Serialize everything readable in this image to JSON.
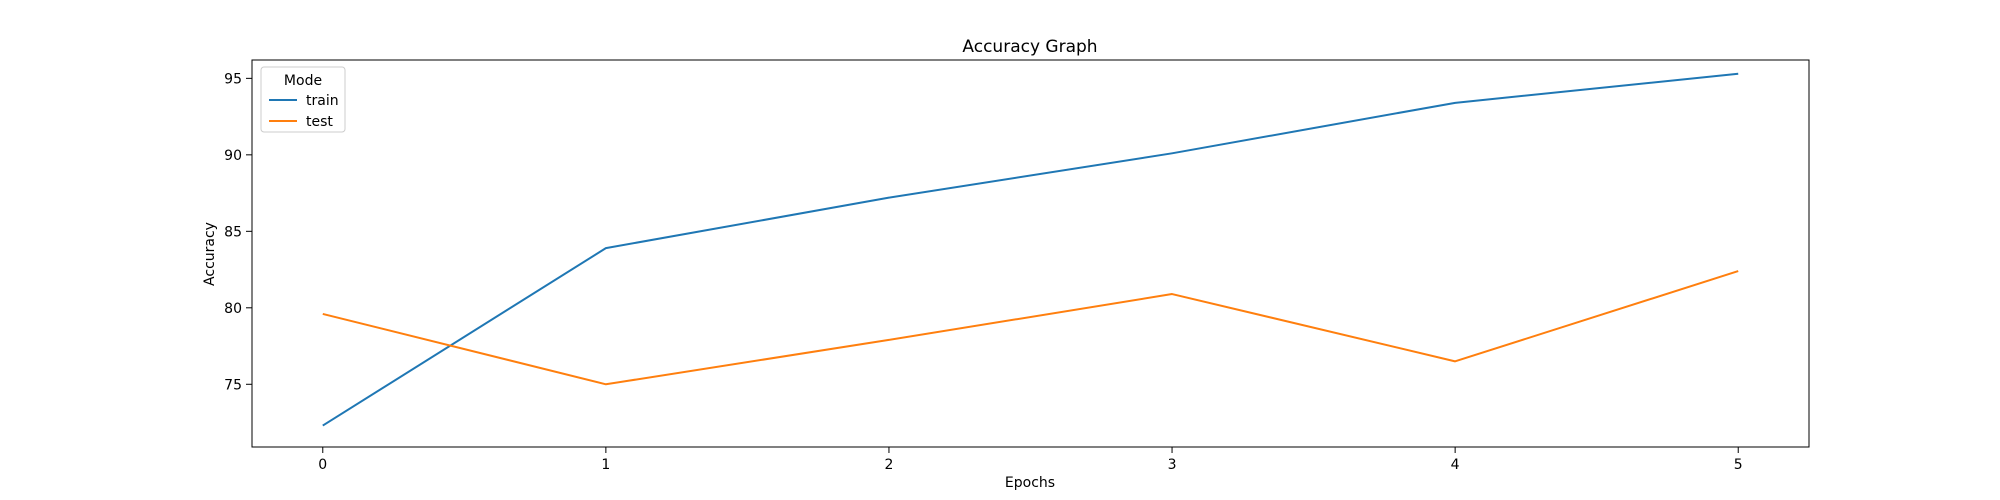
{
  "chart_data": {
    "type": "line",
    "title": "Accuracy Graph",
    "xlabel": "Epochs",
    "ylabel": "Accuracy",
    "x": [
      0,
      1,
      2,
      3,
      4,
      5
    ],
    "xticks": [
      0,
      1,
      2,
      3,
      4,
      5
    ],
    "yticks": [
      75,
      80,
      85,
      90,
      95
    ],
    "xlim": [
      -0.25,
      5.25
    ],
    "ylim": [
      70.9,
      96.2
    ],
    "grid": false,
    "legend": {
      "title": "Mode",
      "placement": "upper-left"
    },
    "series": [
      {
        "name": "train",
        "color": "#1f77b4",
        "values": [
          72.3,
          83.9,
          87.2,
          90.1,
          93.4,
          95.3
        ]
      },
      {
        "name": "test",
        "color": "#ff7f0e",
        "values": [
          79.6,
          75.0,
          77.9,
          80.9,
          76.5,
          82.4
        ]
      }
    ]
  }
}
